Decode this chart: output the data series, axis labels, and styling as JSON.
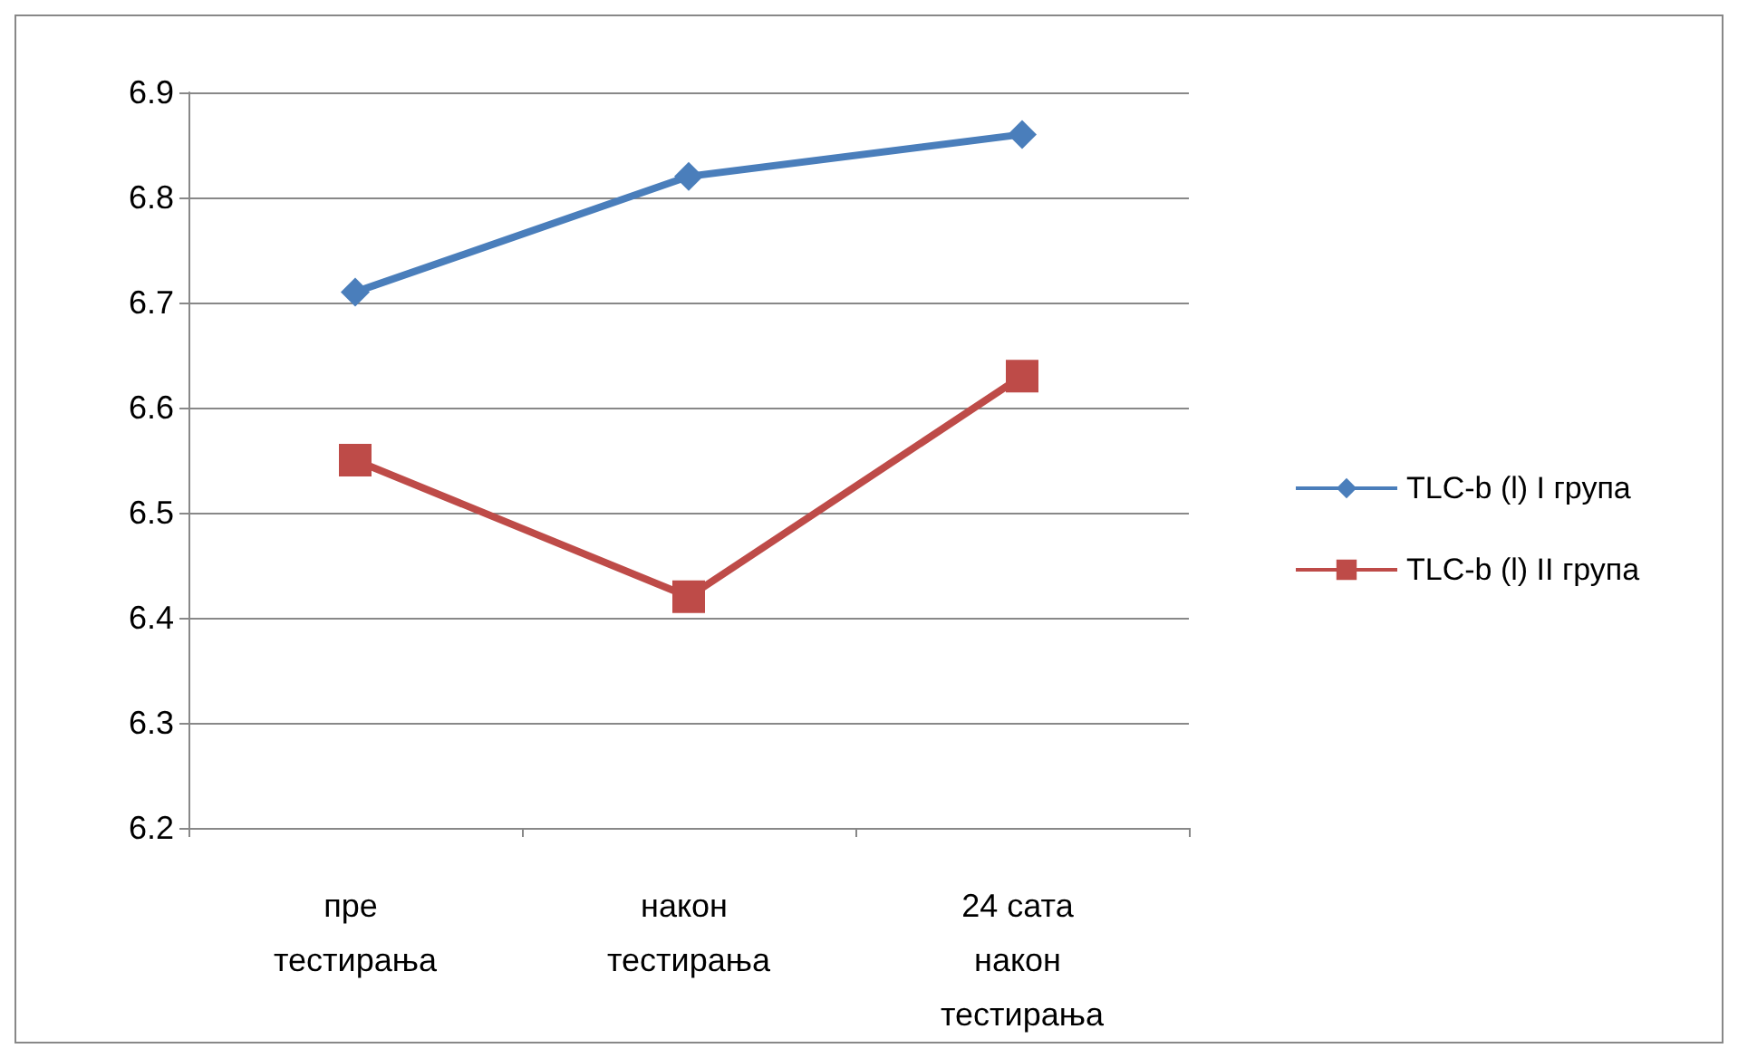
{
  "chart_data": {
    "type": "line",
    "categories": [
      "пре тестирања",
      "након тестирања",
      "24 сата након тестирања"
    ],
    "series": [
      {
        "name": "TLC-b (l) I група",
        "color": "#4a7ebb",
        "marker": "diamond",
        "values": [
          6.71,
          6.82,
          6.86
        ]
      },
      {
        "name": "TLC-b (l) II група",
        "color": "#be4b48",
        "marker": "square",
        "values": [
          6.55,
          6.42,
          6.63
        ]
      }
    ],
    "ylim": [
      6.2,
      6.9
    ],
    "yticks": [
      6.2,
      6.3,
      6.4,
      6.5,
      6.6,
      6.7,
      6.8,
      6.9
    ],
    "grid": "y",
    "legend": "right",
    "line_style": "solid"
  }
}
